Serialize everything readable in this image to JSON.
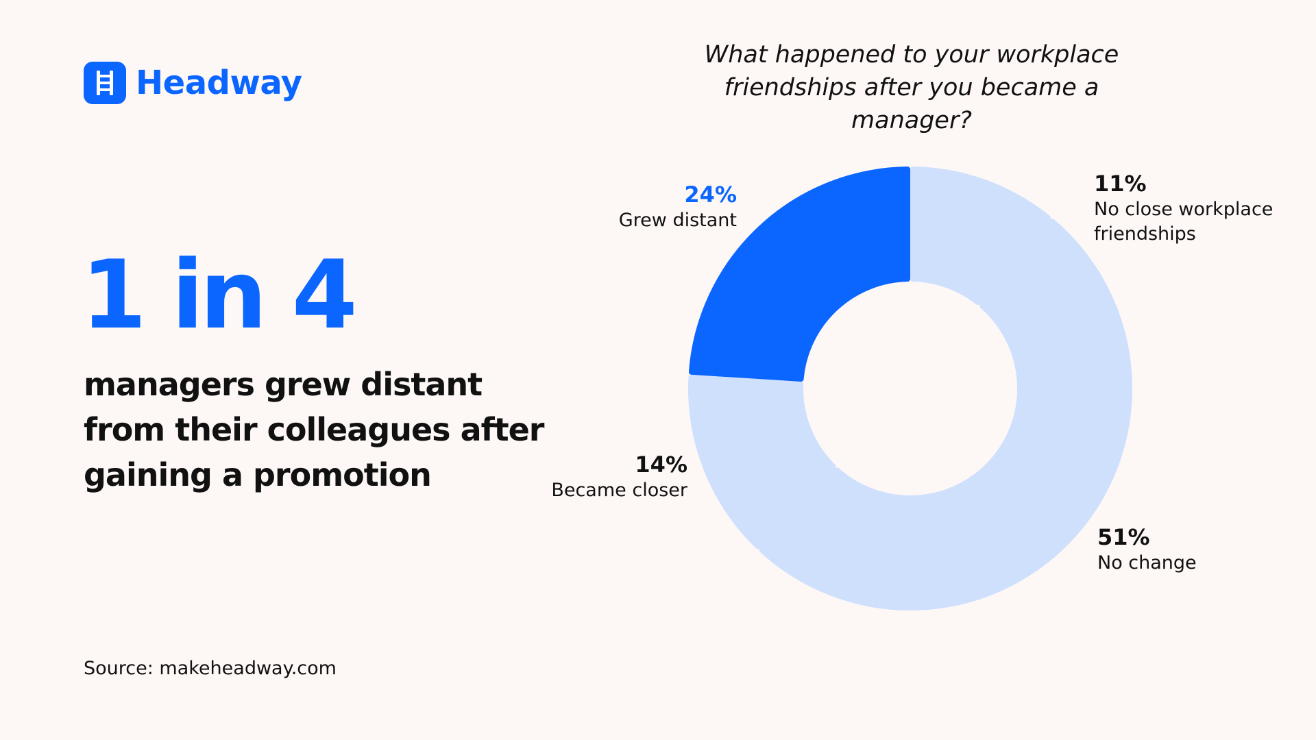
{
  "brand": {
    "name": "Headway",
    "icon": "ladder-icon",
    "color": "#0b66ff"
  },
  "headline": {
    "stat": "1 in 4",
    "text": "managers grew distant from their colleagues after gaining a promotion"
  },
  "source": "Source: makeheadway.com",
  "chart_data": {
    "type": "pie",
    "donut": true,
    "title": "What happened to your workplace friendships after you became a manager?",
    "unit": "%",
    "slices": [
      {
        "label": "No close workplace friendships",
        "value": 11,
        "display": "11%",
        "color": "#cfe0fd"
      },
      {
        "label": "No change",
        "value": 51,
        "display": "51%",
        "color": "#cfe0fd"
      },
      {
        "label": "Became closer",
        "value": 14,
        "display": "14%",
        "color": "#cfe0fd"
      },
      {
        "label": "Grew distant",
        "value": 24,
        "display": "24%",
        "color": "#0b66ff"
      }
    ],
    "highlight": "Grew distant"
  }
}
